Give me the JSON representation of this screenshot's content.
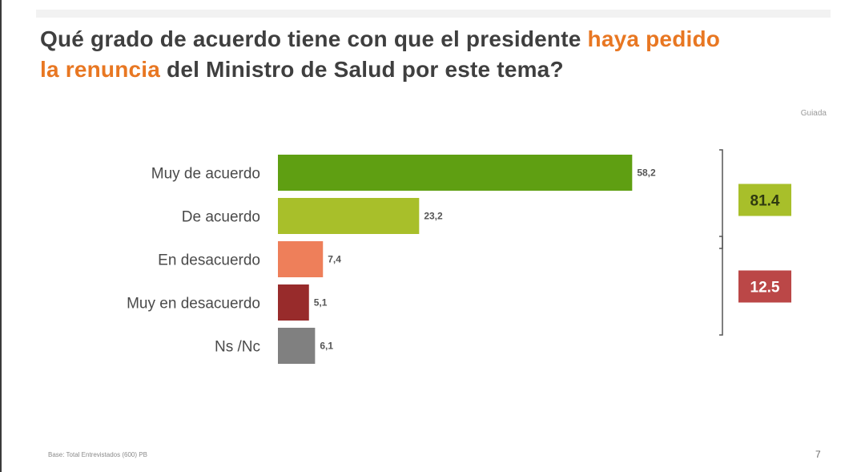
{
  "title": {
    "part1": "Qué grado de acuerdo tiene con que el presidente ",
    "highlight1": "haya pedido",
    "highlight2": "la renuncia",
    "part2": " del Ministro de Salud por este tema?"
  },
  "brand": "Guiada",
  "footer": "Base: Total Entrevistados (600) PB",
  "page_number": "7",
  "colors": {
    "accent": "#e87722",
    "muy_de_acuerdo": "#5f9f12",
    "de_acuerdo": "#a8bf2a",
    "en_desacuerdo": "#ee7f5a",
    "muy_en_desacuerdo": "#982b2b",
    "ns_nc": "#808080",
    "group_agree": "#a8bf2a",
    "group_disagree": "#bb4747"
  },
  "chart_data": {
    "type": "bar",
    "orientation": "horizontal",
    "categories": [
      "Muy de acuerdo",
      "De acuerdo",
      "En desacuerdo",
      "Muy en desacuerdo",
      "Ns /Nc"
    ],
    "values": [
      58.2,
      23.2,
      7.4,
      5.1,
      6.1
    ],
    "value_labels": [
      "58,2",
      "23,2",
      "7,4",
      "5,1",
      "6,1"
    ],
    "xlim": [
      0,
      100
    ],
    "grid": false,
    "groups": [
      {
        "label": "81.4",
        "value": 81.4,
        "categories": [
          "Muy de acuerdo",
          "De acuerdo"
        ]
      },
      {
        "label": "12.5",
        "value": 12.5,
        "categories": [
          "En desacuerdo",
          "Muy en desacuerdo"
        ]
      }
    ]
  }
}
